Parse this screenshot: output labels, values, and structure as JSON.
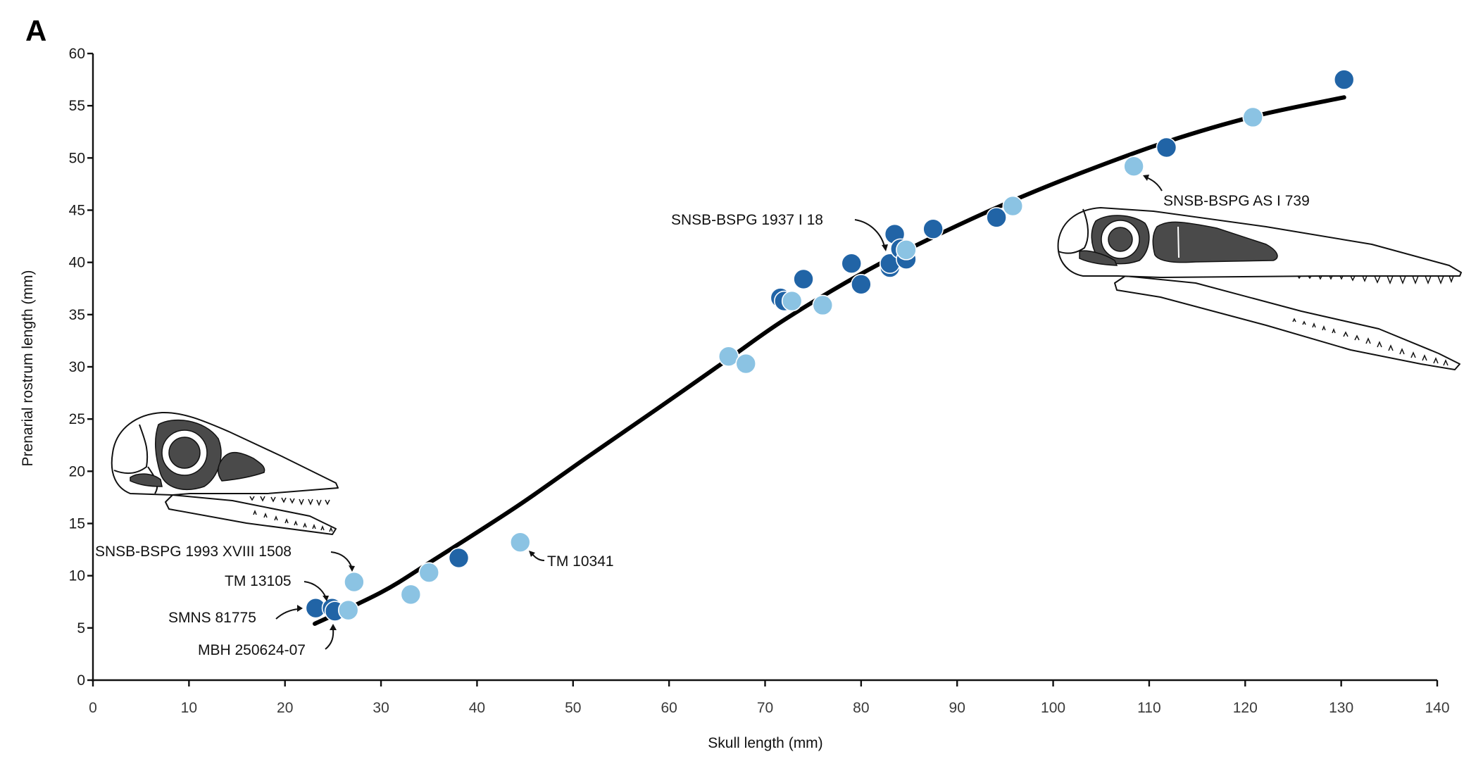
{
  "figure": {
    "panel_letter": "A"
  },
  "colors": {
    "series_dark": "#2164a6",
    "series_light": "#8bc3e3",
    "fit_line": "#000000"
  },
  "chart_data": {
    "type": "scatter",
    "title": "",
    "xlabel": "Skull length (mm)",
    "ylabel": "Prenarial rostrum length (mm)",
    "xlim": [
      0,
      140
    ],
    "ylim": [
      0,
      60
    ],
    "x_ticks": [
      0,
      10,
      20,
      30,
      40,
      50,
      60,
      70,
      80,
      90,
      100,
      110,
      120,
      130,
      140
    ],
    "y_ticks": [
      0,
      5,
      10,
      15,
      20,
      25,
      30,
      35,
      40,
      45,
      50,
      55,
      60
    ],
    "grid": false,
    "legend": null,
    "series": [
      {
        "name": "dark blue group",
        "color": "#2164a6",
        "points": [
          {
            "x": 23.2,
            "y": 6.9
          },
          {
            "x": 24.9,
            "y": 6.9
          },
          {
            "x": 25.2,
            "y": 6.6
          },
          {
            "x": 38.1,
            "y": 11.7
          },
          {
            "x": 71.6,
            "y": 36.6
          },
          {
            "x": 72.0,
            "y": 36.3
          },
          {
            "x": 74.0,
            "y": 38.4
          },
          {
            "x": 79.0,
            "y": 39.9
          },
          {
            "x": 80.0,
            "y": 37.9
          },
          {
            "x": 83.5,
            "y": 42.7
          },
          {
            "x": 83.0,
            "y": 39.5
          },
          {
            "x": 84.1,
            "y": 41.3
          },
          {
            "x": 84.7,
            "y": 40.3
          },
          {
            "x": 83.0,
            "y": 39.9
          },
          {
            "x": 87.5,
            "y": 43.2
          },
          {
            "x": 94.1,
            "y": 44.3
          },
          {
            "x": 111.8,
            "y": 51.0
          },
          {
            "x": 130.3,
            "y": 57.5
          }
        ]
      },
      {
        "name": "light blue group",
        "color": "#8bc3e3",
        "points": [
          {
            "x": 26.6,
            "y": 6.7
          },
          {
            "x": 27.2,
            "y": 9.4
          },
          {
            "x": 33.1,
            "y": 8.2
          },
          {
            "x": 35.0,
            "y": 10.3
          },
          {
            "x": 44.5,
            "y": 13.2
          },
          {
            "x": 66.2,
            "y": 31.0
          },
          {
            "x": 68.0,
            "y": 30.3
          },
          {
            "x": 72.8,
            "y": 36.3
          },
          {
            "x": 76.0,
            "y": 35.9
          },
          {
            "x": 84.7,
            "y": 41.2
          },
          {
            "x": 95.8,
            "y": 45.4
          },
          {
            "x": 108.4,
            "y": 49.2
          },
          {
            "x": 120.8,
            "y": 53.9
          }
        ]
      }
    ],
    "fit_curve": {
      "type": "sigmoidal",
      "points": [
        {
          "x": 23.1,
          "y": 5.4
        },
        {
          "x": 30.0,
          "y": 8.4
        },
        {
          "x": 35.3,
          "y": 11.4
        },
        {
          "x": 44.1,
          "y": 16.6
        },
        {
          "x": 51.4,
          "y": 21.3
        },
        {
          "x": 58.8,
          "y": 26.0
        },
        {
          "x": 66.1,
          "y": 30.7
        },
        {
          "x": 72.0,
          "y": 34.5
        },
        {
          "x": 80.0,
          "y": 38.9
        },
        {
          "x": 87.0,
          "y": 42.2
        },
        {
          "x": 95.0,
          "y": 45.6
        },
        {
          "x": 103.0,
          "y": 48.6
        },
        {
          "x": 112.0,
          "y": 51.6
        },
        {
          "x": 121.0,
          "y": 54.0
        },
        {
          "x": 130.3,
          "y": 55.8
        }
      ]
    },
    "annotations": [
      {
        "text": "SNSB-BSPG 1993 XVIII 1508",
        "target": {
          "x": 27.2,
          "y": 9.4
        }
      },
      {
        "text": "TM 13105",
        "target": {
          "x": 24.9,
          "y": 6.9
        }
      },
      {
        "text": "SMNS 81775",
        "target": {
          "x": 23.2,
          "y": 6.9
        }
      },
      {
        "text": "MBH 250624-07",
        "target": {
          "x": 25.2,
          "y": 6.6
        }
      },
      {
        "text": "TM 10341",
        "target": {
          "x": 44.5,
          "y": 13.2
        }
      },
      {
        "text": "SNSB-BSPG 1937 I 18",
        "target": {
          "x": 83.0,
          "y": 39.9
        }
      },
      {
        "text": "SNSB-BSPG AS I 739",
        "target": {
          "x": 108.4,
          "y": 49.2
        }
      }
    ],
    "illustrations": [
      {
        "name": "small-skull-illustration",
        "position": "left, near small specimens"
      },
      {
        "name": "large-skull-illustration",
        "position": "right, near large specimens"
      }
    ]
  }
}
